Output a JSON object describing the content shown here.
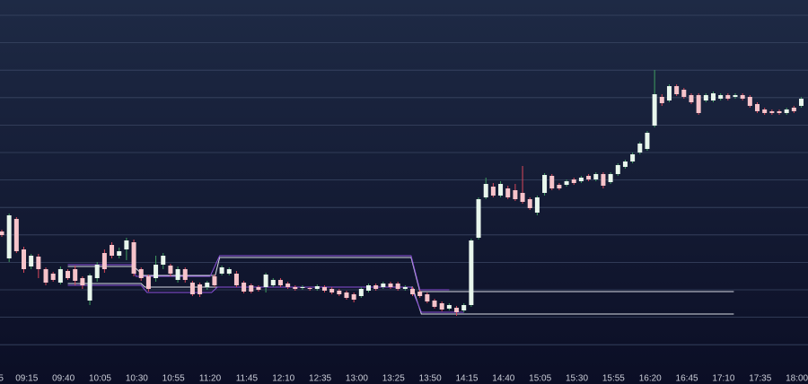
{
  "chart_data": {
    "type": "candlestick",
    "up_color": "#e8f6ec",
    "up_wick": "#3f9d5f",
    "down_color": "#f6c3ca",
    "down_wick": "#d9475a",
    "xlim": [
      -0.245,
      109.915
    ],
    "ylim": [
      0,
      410
    ],
    "open": [
      152,
      122,
      166,
      132,
      113,
      124,
      110,
      105,
      95,
      108,
      110,
      100,
      75,
      100,
      128,
      137,
      125,
      132,
      140,
      110,
      102,
      100,
      115,
      114,
      98,
      110,
      95,
      93,
      90,
      102,
      105,
      105,
      105,
      95,
      92,
      90,
      90,
      92,
      98,
      94,
      90,
      89,
      89,
      88,
      90,
      88,
      86,
      84,
      82,
      80,
      86,
      92,
      90,
      94,
      94,
      88,
      88,
      85,
      82,
      75,
      72,
      66,
      67,
      64,
      70,
      145,
      190,
      202,
      192,
      200,
      198,
      195,
      188,
      173,
      195,
      214,
      204,
      204,
      210,
      208,
      214,
      210,
      216,
      207,
      216,
      224,
      230,
      240,
      244,
      270,
      302,
      298,
      314,
      310,
      304,
      304,
      298,
      298,
      300,
      304,
      302,
      304,
      302,
      294,
      288,
      286,
      286,
      284,
      290,
      292
    ],
    "high": [
      154,
      172,
      168,
      135,
      127,
      127,
      112,
      107,
      113,
      110,
      114,
      102,
      105,
      118,
      132,
      140,
      134,
      145,
      143,
      112,
      104,
      125,
      128,
      116,
      113,
      112,
      97,
      95,
      97,
      104,
      114,
      112,
      108,
      97,
      94,
      92,
      106,
      100,
      100,
      96,
      92,
      92,
      90,
      93,
      92,
      90,
      88,
      86,
      84,
      90,
      94,
      94,
      96,
      96,
      96,
      92,
      90,
      87,
      84,
      77,
      74,
      72,
      69,
      72,
      144,
      190,
      212,
      206,
      208,
      203,
      205,
      225,
      190,
      192,
      217,
      216,
      206,
      210,
      212,
      214,
      216,
      218,
      218,
      218,
      228,
      232,
      240,
      252,
      264,
      332,
      305,
      316,
      316,
      312,
      306,
      306,
      306,
      308,
      306,
      306,
      306,
      306,
      304,
      296,
      290,
      288,
      288,
      290,
      292,
      302
    ],
    "low": [
      146,
      118,
      128,
      106,
      110,
      100,
      92,
      96,
      93,
      98,
      92,
      88,
      70,
      96,
      106,
      122,
      122,
      120,
      102,
      97,
      85,
      96,
      110,
      102,
      95,
      95,
      80,
      79,
      87,
      90,
      103,
      103,
      90,
      83,
      83,
      85,
      84,
      90,
      90,
      88,
      86,
      87,
      86,
      86,
      84,
      82,
      80,
      76,
      73,
      78,
      84,
      86,
      88,
      88,
      86,
      86,
      80,
      78,
      72,
      66,
      63,
      64,
      58,
      62,
      68,
      143,
      188,
      190,
      190,
      188,
      186,
      183,
      176,
      170,
      192,
      198,
      198,
      202,
      204,
      206,
      208,
      208,
      200,
      205,
      214,
      222,
      228,
      238,
      242,
      268,
      292,
      296,
      303,
      300,
      294,
      282,
      296,
      296,
      298,
      298,
      300,
      298,
      290,
      284,
      282,
      282,
      282,
      282,
      284,
      290
    ],
    "close": [
      148,
      170,
      130,
      110,
      125,
      110,
      95,
      98,
      110,
      100,
      97,
      92,
      103,
      115,
      110,
      125,
      130,
      142,
      105,
      100,
      88,
      115,
      125,
      105,
      110,
      98,
      82,
      82,
      95,
      92,
      112,
      110,
      92,
      85,
      85,
      87,
      104,
      98,
      92,
      90,
      88,
      90,
      88,
      91,
      86,
      84,
      82,
      78,
      76,
      88,
      92,
      88,
      94,
      90,
      88,
      90,
      82,
      80,
      74,
      68,
      65,
      70,
      62,
      70,
      142,
      188,
      205,
      192,
      205,
      190,
      188,
      185,
      178,
      190,
      215,
      200,
      200,
      208,
      206,
      212,
      210,
      216,
      203,
      216,
      226,
      230,
      238,
      250,
      262,
      305,
      295,
      314,
      305,
      302,
      296,
      284,
      304,
      306,
      304,
      300,
      304,
      300,
      292,
      286,
      284,
      284,
      284,
      288,
      286,
      300
    ],
    "channels": [
      {
        "color": "#d8dce6",
        "x": [
          9,
          18,
          19.3,
          29.1,
          29.7,
          55.8,
          57,
          99.8
        ],
        "values": [
          113,
          113,
          103,
          103,
          123,
          123,
          85,
          85
        ]
      },
      {
        "color": "#d8dce6",
        "x": [
          9,
          19,
          19.5,
          56,
          57.2,
          99.8
        ],
        "values": [
          94,
          94,
          90,
          90,
          60,
          60
        ]
      },
      {
        "color": "#8a4fd8",
        "x": [
          9,
          17.7,
          18.3,
          28.4,
          29.7,
          55.8,
          57,
          61
        ],
        "values": [
          115,
          115,
          102,
          102,
          125,
          125,
          87,
          87
        ]
      },
      {
        "color": "#8a4fd8",
        "x": [
          9,
          19,
          19.8,
          28.6,
          29.4,
          55.8,
          57.2,
          63
        ],
        "values": [
          92,
          92,
          84,
          84,
          90,
          90,
          62,
          62
        ]
      }
    ],
    "xticks": [
      {
        "value": -0.1,
        "label": "5"
      },
      {
        "value": 3.4,
        "label": "09:15"
      },
      {
        "value": 8.4,
        "label": "09:40"
      },
      {
        "value": 13.4,
        "label": "10:05"
      },
      {
        "value": 18.4,
        "label": "10:30"
      },
      {
        "value": 23.4,
        "label": "10:55"
      },
      {
        "value": 28.4,
        "label": "11:20"
      },
      {
        "value": 33.4,
        "label": "11:45"
      },
      {
        "value": 38.4,
        "label": "12:10"
      },
      {
        "value": 43.4,
        "label": "12:35"
      },
      {
        "value": 48.4,
        "label": "13:00"
      },
      {
        "value": 53.4,
        "label": "13:25"
      },
      {
        "value": 58.4,
        "label": "13:50"
      },
      {
        "value": 63.4,
        "label": "14:15"
      },
      {
        "value": 68.4,
        "label": "14:40"
      },
      {
        "value": 73.4,
        "label": "15:05"
      },
      {
        "value": 78.4,
        "label": "15:30"
      },
      {
        "value": 83.4,
        "label": "15:55"
      },
      {
        "value": 88.4,
        "label": "16:20"
      },
      {
        "value": 93.4,
        "label": "16:45"
      },
      {
        "value": 98.4,
        "label": "17:10"
      },
      {
        "value": 103.4,
        "label": "17:35"
      },
      {
        "value": 108.4,
        "label": "18:00"
      }
    ]
  }
}
